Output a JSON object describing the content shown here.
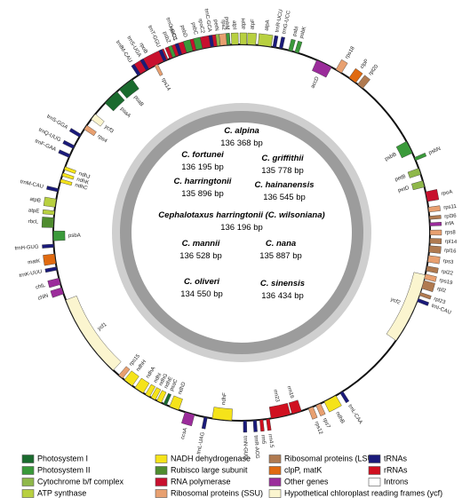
{
  "species": [
    {
      "name": "C. alpina",
      "size": "136 368 bp"
    },
    {
      "name": "C. fortunei",
      "size": "136 195 bp"
    },
    {
      "name": "C. griffithii",
      "size": "135 778 bp"
    },
    {
      "name": "C. harringtonii",
      "size": "135 896 bp"
    },
    {
      "name": "C. hainanensis",
      "size": "136 545 bp"
    },
    {
      "name": "Cephalotaxus harringtonii (C. wilsoniana)",
      "size": "136 196 bp"
    },
    {
      "name": "C. mannii",
      "size": "136 528 bp"
    },
    {
      "name": "C. nana",
      "size": "135 887 bp"
    },
    {
      "name": "C. oliveri",
      "size": "134 550 bp"
    },
    {
      "name": "C. sinensis",
      "size": "136 434 bp"
    }
  ],
  "genes": [
    {
      "label": "rpoB",
      "color": "#c8102e"
    },
    {
      "label": "rpoC1",
      "color": "#c8102e"
    },
    {
      "label": "rpoC2",
      "color": "#c8102e"
    },
    {
      "label": "rps2",
      "color": "#e8a070"
    },
    {
      "label": "atpI",
      "color": "#b8d040"
    },
    {
      "label": "atpH",
      "color": "#b8d040"
    },
    {
      "label": "atpF",
      "color": "#b8d040"
    },
    {
      "label": "atpA",
      "color": "#b8d040"
    },
    {
      "label": "trnR-UCU",
      "color": "#1a1a7a"
    },
    {
      "label": "trnG-UCC",
      "color": "#1a1a7a"
    },
    {
      "label": "psbI",
      "color": "#3a9a3a"
    },
    {
      "label": "psbK",
      "color": "#3a9a3a"
    },
    {
      "label": "accD",
      "color": "#9b2c9b"
    },
    {
      "label": "rps18",
      "color": "#e8a070"
    },
    {
      "label": "clpP",
      "color": "#e06a10"
    },
    {
      "label": "rpl20",
      "color": "#b07a50"
    },
    {
      "label": "psbB",
      "color": "#3a9a3a"
    },
    {
      "label": "psbN",
      "color": "#3a9a3a"
    },
    {
      "label": "petB",
      "color": "#8fb84a"
    },
    {
      "label": "petD",
      "color": "#8fb84a"
    },
    {
      "label": "rpoA",
      "color": "#c8102e"
    },
    {
      "label": "rps11",
      "color": "#e8a070"
    },
    {
      "label": "rpl36",
      "color": "#b07a50"
    },
    {
      "label": "infA",
      "color": "#9b2c9b"
    },
    {
      "label": "rps8",
      "color": "#e8a070"
    },
    {
      "label": "rpl14",
      "color": "#b07a50"
    },
    {
      "label": "rpl16",
      "color": "#b07a50"
    },
    {
      "label": "rps3",
      "color": "#e8a070"
    },
    {
      "label": "rpl22",
      "color": "#b07a50"
    },
    {
      "label": "rps19",
      "color": "#e8a070"
    },
    {
      "label": "rpl2",
      "color": "#b07a50"
    },
    {
      "label": "rpl23",
      "color": "#b07a50"
    },
    {
      "label": "trnI-CAU",
      "color": "#1a1a7a"
    },
    {
      "label": "ycf2",
      "color": "#fbf5cf"
    },
    {
      "label": "trnL-CAA",
      "color": "#1a1a7a"
    },
    {
      "label": "ndhB",
      "color": "#f5e31a"
    },
    {
      "label": "rps7",
      "color": "#e8a070"
    },
    {
      "label": "rps12",
      "color": "#e8a070"
    },
    {
      "label": "rrn16",
      "color": "#d01020"
    },
    {
      "label": "rrn23",
      "color": "#d01020"
    },
    {
      "label": "rrn4.5",
      "color": "#d01020"
    },
    {
      "label": "rrn5",
      "color": "#d01020"
    },
    {
      "label": "trnR-ACG",
      "color": "#1a1a7a"
    },
    {
      "label": "trnN-GUU",
      "color": "#1a1a7a"
    },
    {
      "label": "ndhF",
      "color": "#f5e31a"
    },
    {
      "label": "trnL-UAG",
      "color": "#1a1a7a"
    },
    {
      "label": "ccsA",
      "color": "#9b2c9b"
    },
    {
      "label": "ndhD",
      "color": "#f5e31a"
    },
    {
      "label": "psaC",
      "color": "#1a6b2e"
    },
    {
      "label": "ndhE",
      "color": "#f5e31a"
    },
    {
      "label": "ndhG",
      "color": "#f5e31a"
    },
    {
      "label": "ndhI",
      "color": "#f5e31a"
    },
    {
      "label": "ndhA",
      "color": "#f5e31a"
    },
    {
      "label": "ndhH",
      "color": "#f5e31a"
    },
    {
      "label": "rps15",
      "color": "#e8a070"
    },
    {
      "label": "ycf1",
      "color": "#fbf5cf"
    },
    {
      "label": "chlN",
      "color": "#9b2c9b"
    },
    {
      "label": "chlL",
      "color": "#9b2c9b"
    },
    {
      "label": "trnK-UUU",
      "color": "#1a1a7a"
    },
    {
      "label": "matK",
      "color": "#e06a10"
    },
    {
      "label": "trnH-GUG",
      "color": "#1a1a7a"
    },
    {
      "label": "psbA",
      "color": "#3a9a3a"
    },
    {
      "label": "rbcL",
      "color": "#4f8c2f"
    },
    {
      "label": "atpE",
      "color": "#b8d040"
    },
    {
      "label": "atpB",
      "color": "#b8d040"
    },
    {
      "label": "trnM-CAU",
      "color": "#1a1a7a"
    },
    {
      "label": "ndhC",
      "color": "#f5e31a"
    },
    {
      "label": "ndhK",
      "color": "#f5e31a"
    },
    {
      "label": "ndhJ",
      "color": "#f5e31a"
    },
    {
      "label": "trnF-GAA",
      "color": "#1a1a7a"
    },
    {
      "label": "trnQ-UUG",
      "color": "#1a1a7a"
    },
    {
      "label": "trnS-GGA",
      "color": "#1a1a7a"
    },
    {
      "label": "rps4",
      "color": "#e8a070"
    },
    {
      "label": "ycf3",
      "color": "#fbf5cf"
    },
    {
      "label": "psaA",
      "color": "#1a6b2e"
    },
    {
      "label": "psaB",
      "color": "#1a6b2e"
    },
    {
      "label": "trnfM-CAU",
      "color": "#1a1a7a"
    },
    {
      "label": "trnS-UGA",
      "color": "#1a1a7a"
    },
    {
      "label": "rps14",
      "color": "#e8a070"
    },
    {
      "label": "trnT-GGU",
      "color": "#1a1a7a"
    },
    {
      "label": "psbZ",
      "color": "#3a9a3a"
    },
    {
      "label": "trnG-GCC",
      "color": "#1a1a7a"
    },
    {
      "label": "psbD",
      "color": "#3a9a3a"
    },
    {
      "label": "psbC",
      "color": "#3a9a3a"
    },
    {
      "label": "trnC-GCA",
      "color": "#1a1a7a"
    },
    {
      "label": "petN",
      "color": "#8fb84a"
    },
    {
      "label": "psbM",
      "color": "#3a9a3a"
    }
  ],
  "legend": [
    {
      "label": "Photosystem I",
      "color": "#1a6b2e"
    },
    {
      "label": "Photosystem II",
      "color": "#3a9a3a"
    },
    {
      "label": "Cytochrome b/f complex",
      "color": "#8fb84a"
    },
    {
      "label": "ATP synthase",
      "color": "#b8d040"
    },
    {
      "label": "NADH dehydrogenase",
      "color": "#f5e31a"
    },
    {
      "label": "Rubisco large subunit",
      "color": "#4f8c2f"
    },
    {
      "label": "RNA polymerase",
      "color": "#c8102e"
    },
    {
      "label": "Ribosomal proteins (SSU)",
      "color": "#e8a070"
    },
    {
      "label": "Ribosomal proteins (LSU)",
      "color": "#b07a50"
    },
    {
      "label": "clpP, matK",
      "color": "#e06a10"
    },
    {
      "label": "Other genes",
      "color": "#9b2c9b"
    },
    {
      "label": "Hypothetical chloroplast reading frames (ycf)",
      "color": "#fbf5cf"
    },
    {
      "label": "tRNAs",
      "color": "#1a1a7a"
    },
    {
      "label": "rRNAs",
      "color": "#d01020"
    },
    {
      "label": "Introns",
      "color": "#ffffff"
    }
  ]
}
